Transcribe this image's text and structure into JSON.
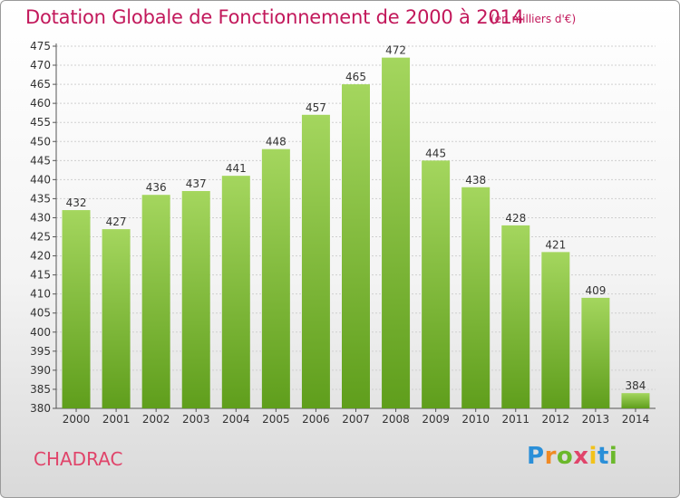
{
  "chart_data": {
    "type": "bar",
    "title": "Dotation Globale de Fonctionnement de 2000 à 2014",
    "subtitle": "(en milliers d'€)",
    "categories": [
      "2000",
      "2001",
      "2002",
      "2003",
      "2004",
      "2005",
      "2006",
      "2007",
      "2008",
      "2009",
      "2010",
      "2011",
      "2012",
      "2013",
      "2014"
    ],
    "values": [
      432,
      427,
      436,
      437,
      441,
      448,
      457,
      465,
      472,
      445,
      438,
      428,
      421,
      409,
      384
    ],
    "ylim": [
      380,
      475
    ],
    "ytick_step": 5,
    "grid": true,
    "bar_color_top": "#a4d65e",
    "bar_color_bottom": "#5f9e1c"
  },
  "footer": {
    "place_name": "CHADRAC",
    "logo_text": "Proxiti"
  }
}
